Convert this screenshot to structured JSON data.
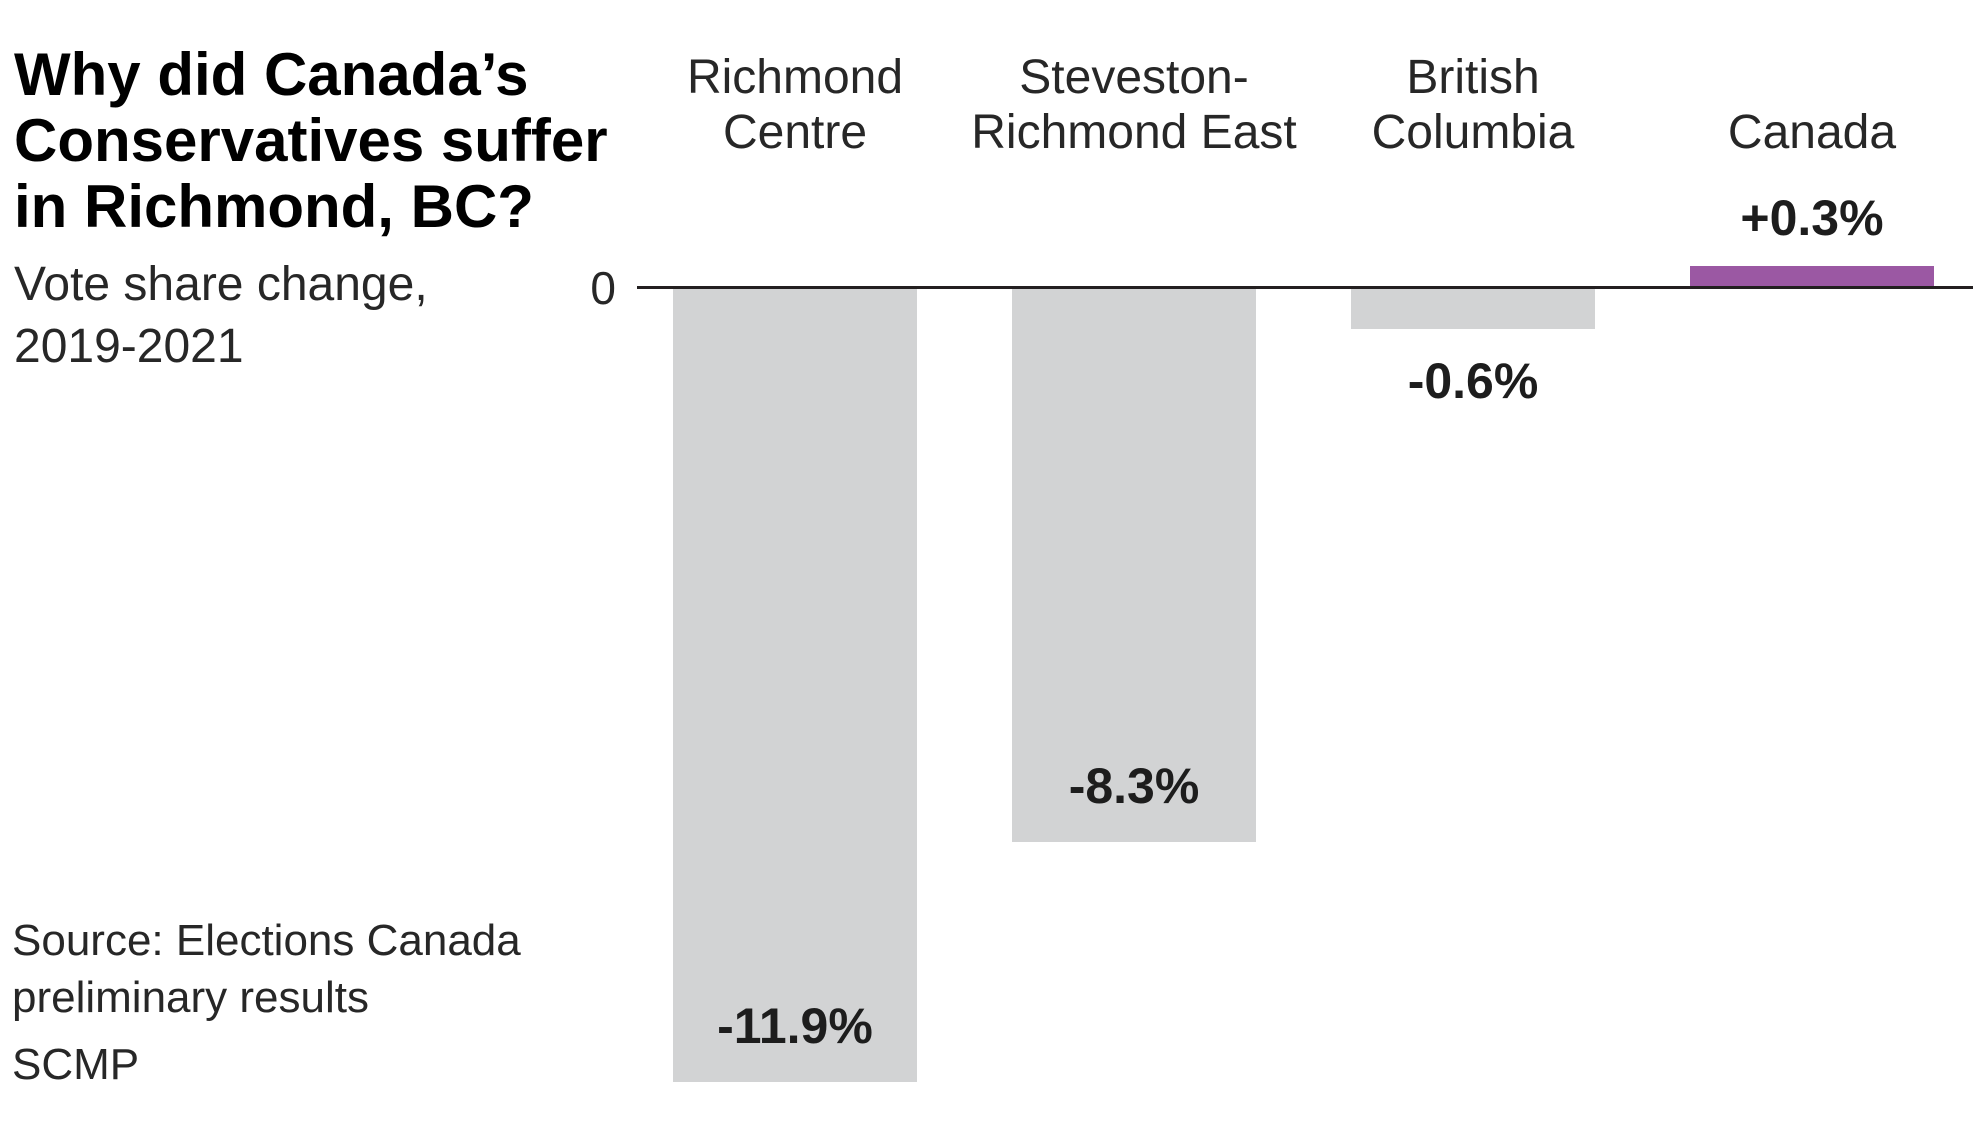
{
  "header": {
    "title": "Why did Canada’s\nConservatives suffer\nin Richmond, BC?",
    "subtitle": "Vote share change,\n2019-2021"
  },
  "axis": {
    "zero_label": "0"
  },
  "footer": {
    "source": "Source: Elections Canada\npreliminary results",
    "brand": "SCMP"
  },
  "colors": {
    "negative_bar": "#d2d3d4",
    "positive_bar": "#9b58a3",
    "axis_line": "#231f20",
    "title_text": "#000000",
    "secondary_text": "#272727",
    "value_text": "#1d1d1d",
    "background": "#ffffff"
  },
  "chart_data": {
    "type": "bar",
    "title": "Why did Canada’s Conservatives suffer in Richmond, BC?",
    "subtitle": "Vote share change, 2019-2021",
    "unit": "percentage points (%)",
    "baseline": 0,
    "baseline_label": "0",
    "grid": false,
    "legend": false,
    "categories": [
      "Richmond Centre",
      "Steveston-Richmond East",
      "British Columbia",
      "Canada"
    ],
    "values": [
      -11.9,
      -8.3,
      -0.6,
      0.3
    ],
    "ylim": [
      -11.9,
      0.3
    ],
    "source": "Source: Elections Canada preliminary results",
    "brand": "SCMP",
    "bars": [
      {
        "category": "Richmond Centre",
        "category_lines": [
          "Richmond",
          "Centre"
        ],
        "value": -11.9,
        "value_label": "-11.9%",
        "label_position": "inside-bottom",
        "color": "#d2d3d4"
      },
      {
        "category": "Steveston-Richmond East",
        "category_lines": [
          "Steveston-",
          "Richmond East"
        ],
        "value": -8.3,
        "value_label": "-8.3%",
        "label_position": "inside-bottom",
        "color": "#d2d3d4"
      },
      {
        "category": "British Columbia",
        "category_lines": [
          "British",
          "Columbia"
        ],
        "value": -0.6,
        "value_label": "-0.6%",
        "label_position": "below",
        "color": "#d2d3d4"
      },
      {
        "category": "Canada",
        "category_lines": [
          "Canada"
        ],
        "value": 0.3,
        "value_label": "+0.3%",
        "label_position": "above",
        "color": "#9b58a3"
      }
    ]
  }
}
